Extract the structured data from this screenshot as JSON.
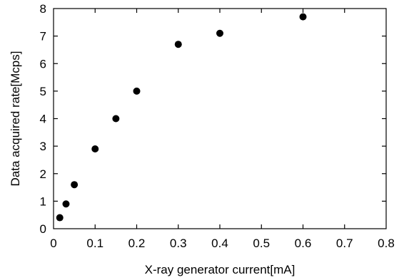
{
  "chart_data": {
    "type": "scatter",
    "title": "",
    "xlabel": "X-ray generator current[mA]",
    "ylabel": "Data acquired rate[Mcps]",
    "xlim": [
      0,
      0.8
    ],
    "ylim": [
      0,
      8
    ],
    "xticks": [
      "0",
      "0.1",
      "0.2",
      "0.3",
      "0.4",
      "0.5",
      "0.6",
      "0.7",
      "0.8"
    ],
    "yticks": [
      "0",
      "1",
      "2",
      "3",
      "4",
      "5",
      "6",
      "7",
      "8"
    ],
    "grid": false,
    "legend": "none",
    "marker_color": "#000000",
    "series": [
      {
        "x": [
          0.015,
          0.03,
          0.05,
          0.1,
          0.15,
          0.2,
          0.3,
          0.4,
          0.6
        ],
        "y": [
          0.4,
          0.9,
          1.6,
          2.9,
          4.0,
          5.0,
          6.7,
          7.1,
          7.7
        ]
      }
    ]
  }
}
